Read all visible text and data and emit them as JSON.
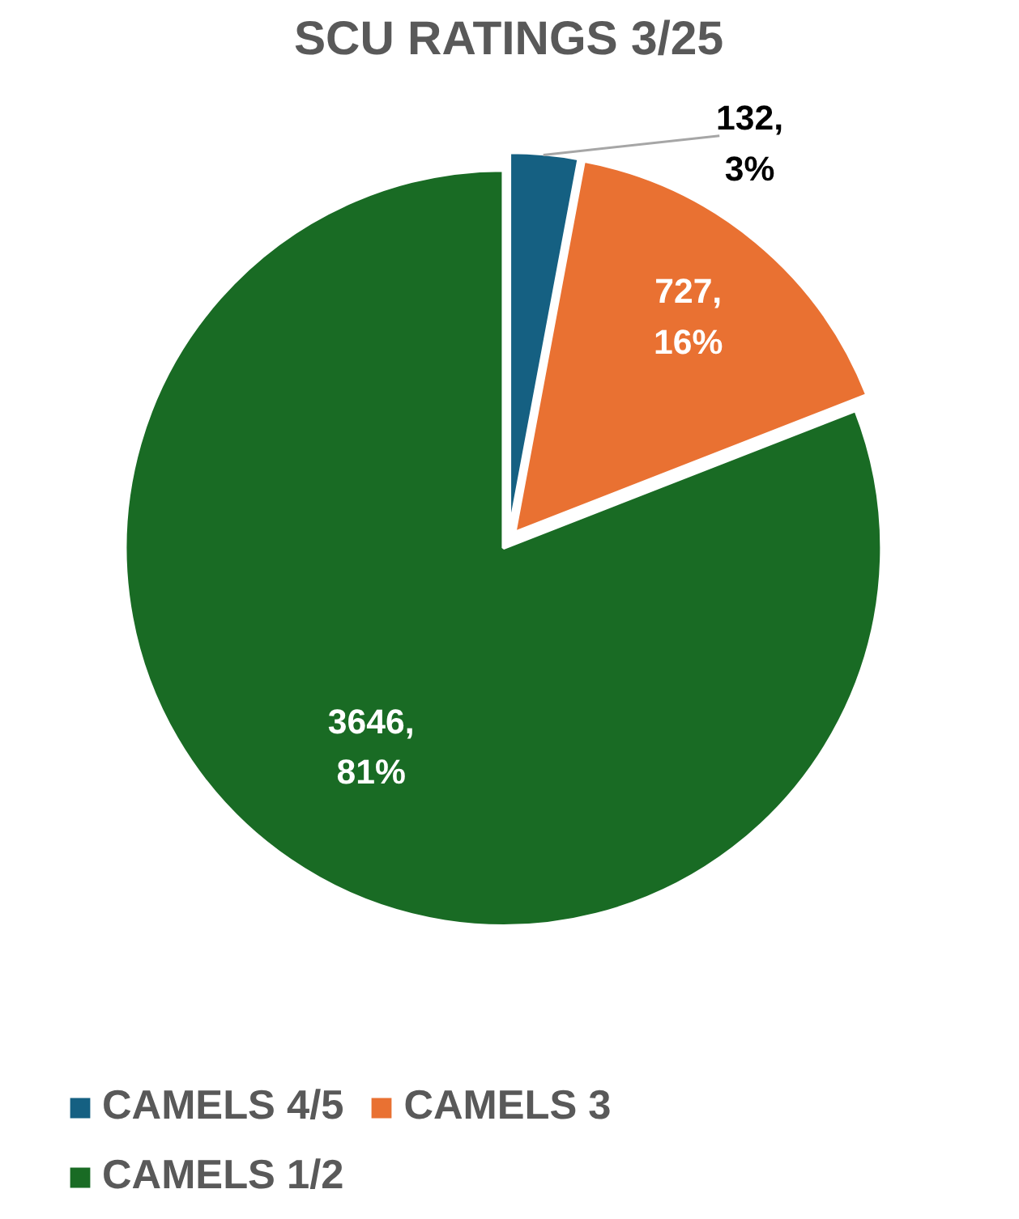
{
  "chart_data": {
    "type": "pie",
    "title": "SCU RATINGS 3/25",
    "categories": [
      "CAMELS 4/5",
      "CAMELS 3",
      "CAMELS 1/2"
    ],
    "values": [
      132,
      727,
      3646
    ],
    "colors": [
      "#156082",
      "#e97132",
      "#196b24"
    ],
    "value_labels": [
      "132,\n3%",
      "727,\n16%",
      "3646,\n81%"
    ],
    "legend": "bottom"
  }
}
